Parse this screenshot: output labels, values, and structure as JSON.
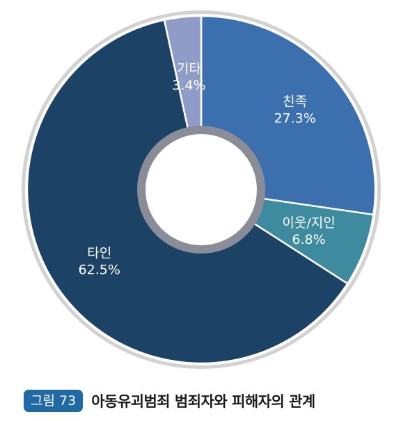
{
  "chart_data": {
    "type": "pie",
    "title": "",
    "categories": [
      "친족",
      "이웃/지인",
      "타인",
      "기타"
    ],
    "values": [
      27.3,
      6.8,
      62.5,
      3.4
    ],
    "value_labels": [
      "27.3%",
      "6.8%",
      "62.5%",
      "3.4%"
    ],
    "unit": "%",
    "donut": true,
    "start_angle_deg": 0,
    "direction": "clockwise",
    "colors": [
      "#3b6fae",
      "#3e8b9f",
      "#1c4266",
      "#8f9cc7"
    ],
    "outer_ring_color": "#d2d2d2",
    "inner_ring_color": "#8a8d98"
  },
  "caption": {
    "figure_label": "그림 73",
    "title": "아동유괴범죄 범죄자와 피해자의 관계"
  }
}
